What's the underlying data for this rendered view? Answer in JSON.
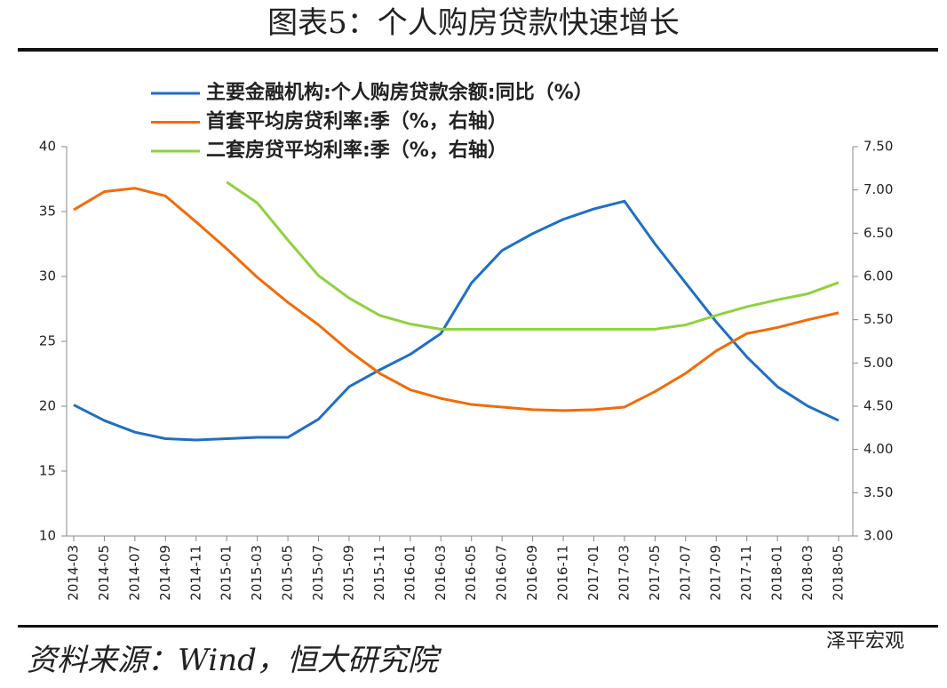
{
  "chart_data": {
    "type": "line",
    "title": "图表5：个人购房贷款快速增长",
    "source": "资料来源：Wind，恒大研究院",
    "watermark": "泽平宏观",
    "legend": "top",
    "categories": [
      "2014-03",
      "2014-05",
      "2014-07",
      "2014-09",
      "2014-11",
      "2015-01",
      "2015-03",
      "2015-05",
      "2015-07",
      "2015-09",
      "2015-11",
      "2016-01",
      "2016-03",
      "2016-05",
      "2016-07",
      "2016-09",
      "2016-11",
      "2017-01",
      "2017-03",
      "2017-05",
      "2017-07",
      "2017-09",
      "2017-11",
      "2018-01",
      "2018-03",
      "2018-05"
    ],
    "ylim": [
      10,
      40
    ],
    "yticks": [
      10,
      15,
      20,
      25,
      30,
      35,
      40
    ],
    "y2lim": [
      3,
      7.5
    ],
    "y2ticks": [
      {
        "value": 3,
        "label": "3.00"
      },
      {
        "value": 3.5,
        "label": "3.50"
      },
      {
        "value": 4,
        "label": "4.00"
      },
      {
        "value": 4.5,
        "label": "4.50"
      },
      {
        "value": 5,
        "label": "5.00"
      },
      {
        "value": 5.5,
        "label": "5.50"
      },
      {
        "value": 6,
        "label": "6.00"
      },
      {
        "value": 6.5,
        "label": "6.50"
      },
      {
        "value": 7,
        "label": "7.00"
      },
      {
        "value": 7.5,
        "label": "7.50"
      }
    ],
    "series": [
      {
        "name": "主要金融机构:个人购房贷款余额:同比（%）",
        "color": "#1f6fc5",
        "axis": "y",
        "values": [
          20.1,
          18.9,
          18.0,
          17.5,
          17.4,
          17.5,
          17.6,
          17.6,
          19.0,
          21.5,
          22.8,
          24.0,
          25.6,
          29.5,
          32.0,
          33.3,
          34.4,
          35.2,
          35.8,
          32.5,
          29.5,
          26.5,
          23.8,
          21.5,
          20.0,
          18.9
        ]
      },
      {
        "name": "首套平均房贷利率:季（%，右轴）",
        "color": "#f26b0a",
        "axis": "y2",
        "values": [
          6.77,
          6.98,
          7.02,
          6.93,
          6.63,
          6.32,
          5.99,
          5.7,
          5.44,
          5.14,
          4.88,
          4.69,
          4.59,
          4.52,
          4.49,
          4.46,
          4.45,
          4.46,
          4.49,
          4.67,
          4.88,
          5.14,
          5.34,
          5.41,
          5.5,
          5.58
        ]
      },
      {
        "name": "二套房贷平均利率:季（%，右轴）",
        "color": "#8fd13f",
        "axis": "y2",
        "values": [
          null,
          null,
          null,
          null,
          null,
          7.09,
          6.85,
          6.42,
          6.01,
          5.75,
          5.55,
          5.45,
          5.39,
          5.39,
          5.39,
          5.39,
          5.39,
          5.39,
          5.39,
          5.39,
          5.44,
          5.55,
          5.65,
          5.73,
          5.8,
          5.93
        ]
      }
    ]
  }
}
